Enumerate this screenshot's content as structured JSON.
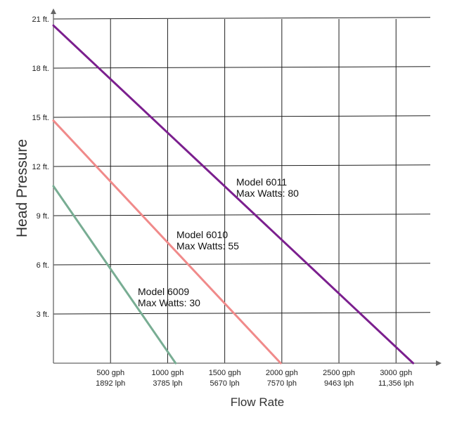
{
  "chart_data": {
    "type": "line",
    "title": "",
    "xlabel": "Flow Rate",
    "ylabel": "Head Pressure",
    "xlim": [
      0,
      3300
    ],
    "ylim": [
      0,
      21
    ],
    "grid": true,
    "x_ticks": [
      {
        "value": 500,
        "label": "500 gph",
        "sublabel": "1892 lph"
      },
      {
        "value": 1000,
        "label": "1000 gph",
        "sublabel": "3785 lph"
      },
      {
        "value": 1500,
        "label": "1500 gph",
        "sublabel": "5670 lph"
      },
      {
        "value": 2000,
        "label": "2000 gph",
        "sublabel": "7570 lph"
      },
      {
        "value": 2500,
        "label": "2500 gph",
        "sublabel": "9463 lph"
      },
      {
        "value": 3000,
        "label": "3000 gph",
        "sublabel": "11,356 lph"
      }
    ],
    "y_ticks": [
      {
        "value": 3,
        "label": "3 ft."
      },
      {
        "value": 6,
        "label": "6 ft."
      },
      {
        "value": 9,
        "label": "9 ft."
      },
      {
        "value": 12,
        "label": "12 ft."
      },
      {
        "value": 15,
        "label": "15 ft."
      },
      {
        "value": 18,
        "label": "18 ft."
      },
      {
        "value": 21,
        "label": "21 ft."
      }
    ],
    "series": [
      {
        "name": "Model 6011",
        "subtitle": "Max Watts: 80",
        "color": "#7b1f8e",
        "points": [
          [
            0,
            20.6
          ],
          [
            3150,
            0
          ]
        ]
      },
      {
        "name": "Model 6010",
        "subtitle": "Max Watts: 55",
        "color": "#f08a8a",
        "points": [
          [
            0,
            14.8
          ],
          [
            1990,
            0
          ]
        ]
      },
      {
        "name": "Model 6009",
        "subtitle": "Max Watts: 30",
        "color": "#78ad93",
        "points": [
          [
            0,
            10.8
          ],
          [
            1070,
            0
          ]
        ]
      }
    ]
  }
}
